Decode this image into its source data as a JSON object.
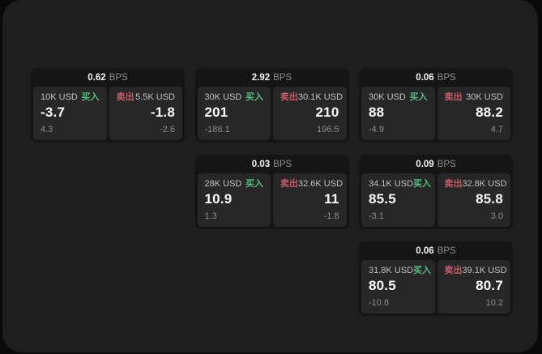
{
  "labels": {
    "buy": "买入",
    "sell": "卖出",
    "bps_unit": "BPS"
  },
  "colors": {
    "buy_accent": "#56be80",
    "sell_accent": "#c45b68",
    "panel_bg": "#1e1e1e",
    "card_bg": "#151515",
    "subpanel_bg": "#272727"
  },
  "cards": [
    {
      "bps": "0.62",
      "buy": {
        "amount": "10K USD",
        "value": "-3.7",
        "sub": "4.3"
      },
      "sell": {
        "amount": "5.5K USD",
        "value": "-1.8",
        "sub": "-2.6"
      }
    },
    {
      "bps": "2.92",
      "buy": {
        "amount": "30K USD",
        "value": "201",
        "sub": "-188.1"
      },
      "sell": {
        "amount": "30.1K USD",
        "value": "210",
        "sub": "196.5"
      }
    },
    {
      "bps": "0.06",
      "buy": {
        "amount": "30K USD",
        "value": "88",
        "sub": "-4.9"
      },
      "sell": {
        "amount": "30K USD",
        "value": "88.2",
        "sub": "4.7"
      }
    },
    {
      "bps": "0.03",
      "buy": {
        "amount": "28K USD",
        "value": "10.9",
        "sub": "1.3"
      },
      "sell": {
        "amount": "32.6K USD",
        "value": "11",
        "sub": "-1.8"
      }
    },
    {
      "bps": "0.09",
      "buy": {
        "amount": "34.1K USD",
        "value": "85.5",
        "sub": "-3.1"
      },
      "sell": {
        "amount": "32.8K USD",
        "value": "85.8",
        "sub": "3.0"
      }
    },
    {
      "bps": "0.06",
      "buy": {
        "amount": "31.8K USD",
        "value": "80.5",
        "sub": "-10.8"
      },
      "sell": {
        "amount": "39.1K USD",
        "value": "80.7",
        "sub": "10.2"
      }
    }
  ]
}
